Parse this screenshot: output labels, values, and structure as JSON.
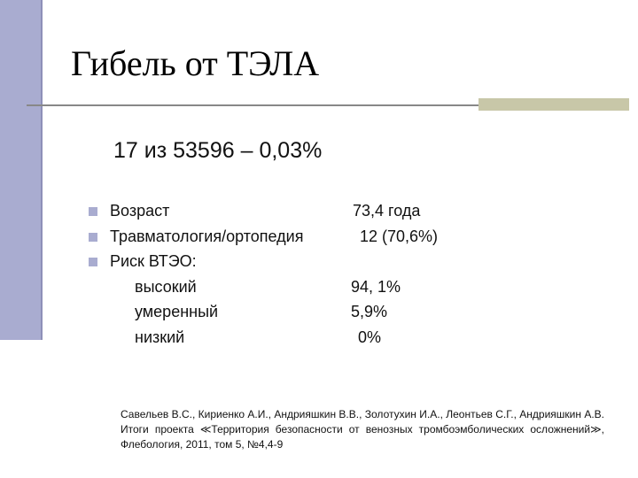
{
  "title": "Гибель от ТЭЛА",
  "subtitle": "17 из 53596 – 0,03%",
  "items": [
    {
      "label": "Возраст",
      "value": "73,4 года",
      "bullet": true
    },
    {
      "label": "Травматология/ортопедия",
      "value": "12 (70,6%)",
      "bullet": true
    },
    {
      "label": "Риск ВТЭО:",
      "value": null,
      "bullet": true
    },
    {
      "label": "высокий",
      "value": "94, 1%",
      "bullet": false
    },
    {
      "label": "умеренный",
      "value": "5,9%",
      "bullet": false
    },
    {
      "label": "низкий",
      "value": "0%",
      "bullet": false
    }
  ],
  "reference": "Савельев В.С., Кириенко А.И., Андрияшкин В.В., Золотухин И.А., Леонтьев С.Г., Андрияшкин А.В. Итоги проекта ≪Территория безопасности от венозных тромбоэмболических осложнений≫, Флебология, 2011, том 5, №4,4-9"
}
